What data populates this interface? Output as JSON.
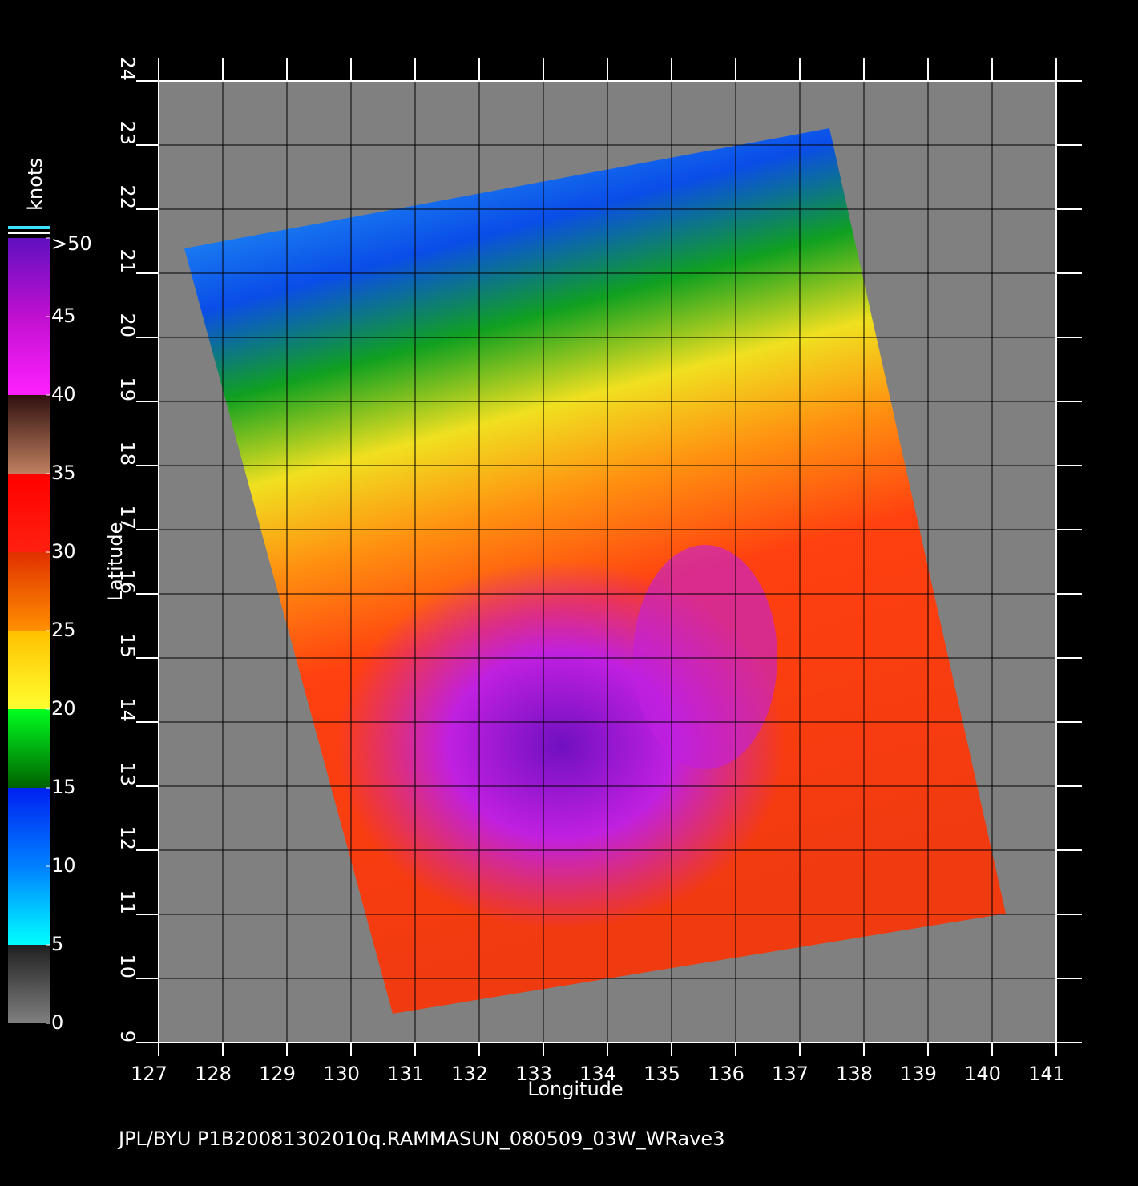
{
  "map": {
    "xaxis": {
      "label": "Longitude",
      "lim": [
        127,
        141
      ],
      "ticks": [
        127,
        128,
        129,
        130,
        131,
        132,
        133,
        134,
        135,
        136,
        137,
        138,
        139,
        140,
        141
      ]
    },
    "yaxis": {
      "label": "Latitude",
      "lim": [
        9,
        24
      ],
      "ticks": [
        9,
        10,
        11,
        12,
        13,
        14,
        15,
        16,
        17,
        18,
        19,
        20,
        21,
        22,
        23,
        24
      ]
    },
    "colorbar": {
      "title": "knots",
      "lim": [
        0,
        50
      ],
      "ticks": [
        0,
        5,
        10,
        15,
        20,
        25,
        30,
        35,
        40,
        45,
        {
          "value": 50,
          "label": ">50"
        }
      ]
    },
    "footer": "JPL/BYU  P1B20081302010q.RAMMASUN_080509_03W_WRave3"
  }
}
